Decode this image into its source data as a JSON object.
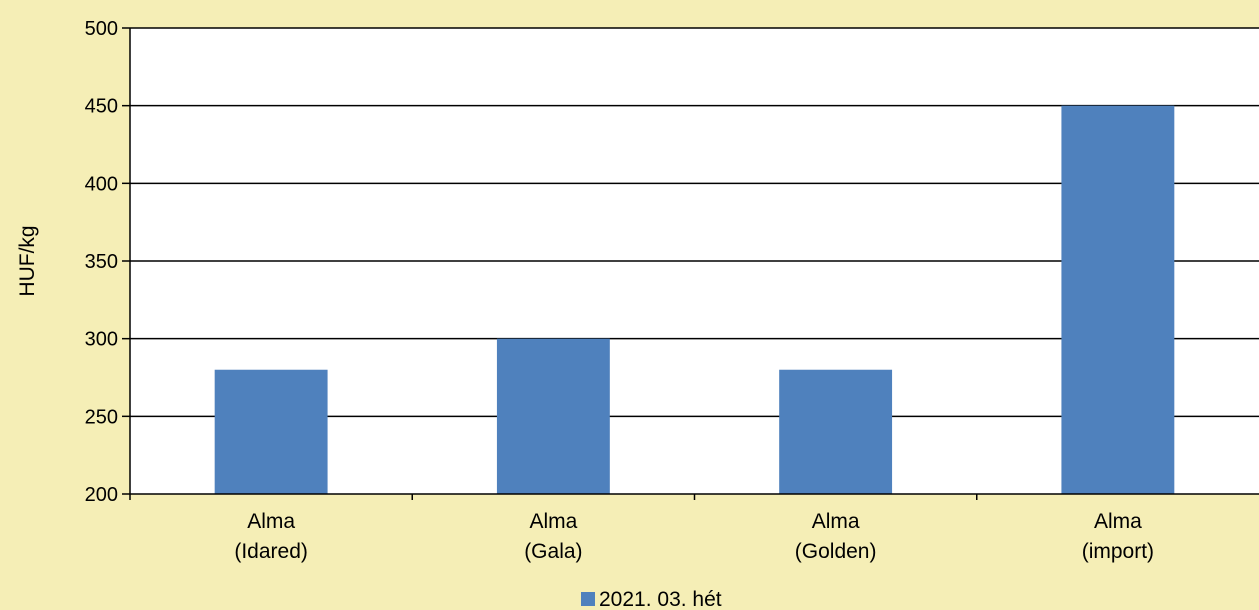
{
  "chart_data": {
    "type": "bar",
    "ylabel": "HUF/kg",
    "xlabel": "",
    "ylim": [
      200,
      500
    ],
    "yticks": [
      200,
      250,
      300,
      350,
      400,
      450,
      500
    ],
    "grid": true,
    "legend_position": "bottom",
    "categories": [
      [
        "Alma",
        "(Idared)"
      ],
      [
        "Alma",
        "(Gala)"
      ],
      [
        "Alma",
        "(Golden)"
      ],
      [
        "Alma",
        "(import)"
      ]
    ],
    "series": [
      {
        "name": "2021. 03. hét",
        "color": "#4F81BD",
        "values": [
          280,
          300,
          280,
          450
        ]
      }
    ]
  },
  "colors": {
    "background": "#F5EEB6",
    "plot_area": "#FFFFFF",
    "bar": "#4F81BD"
  }
}
